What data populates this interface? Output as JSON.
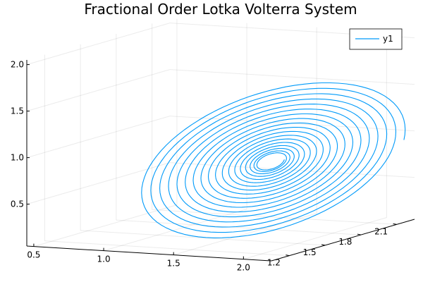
{
  "chart_data": {
    "type": "line",
    "projection": "3d",
    "title": "Fractional Order Lotka Volterra System",
    "xlabel": "",
    "ylabel": "",
    "zlabel": "",
    "grid": true,
    "legend_position": "top-right",
    "axes": {
      "x": {
        "ticks": [
          0.5,
          1.0,
          1.5,
          2.0
        ],
        "tick_labels": [
          "0.5",
          "1.0",
          "1.5",
          "2.0"
        ],
        "range": [
          0.45,
          2.2
        ]
      },
      "y": {
        "ticks": [
          1.2,
          1.5,
          1.8,
          2.1
        ],
        "tick_labels": [
          "1.2",
          "1.5",
          "1.8",
          "2.1"
        ],
        "range": [
          1.05,
          2.25
        ]
      },
      "z": {
        "ticks": [
          0.5,
          1.0,
          1.5,
          2.0
        ],
        "tick_labels": [
          "0.5",
          "1.0",
          "1.5",
          "2.0"
        ],
        "range": [
          0.05,
          2.05
        ]
      }
    },
    "series": [
      {
        "name": "y1",
        "color": "#009af9",
        "trajectory": {
          "center_x": 1.6,
          "center_y": 1.75,
          "center_z": 0.8,
          "outer_amplitude": 0.5,
          "inner_amplitude": 0.05,
          "loops": 18,
          "points_per_loop": 90
        }
      }
    ]
  }
}
